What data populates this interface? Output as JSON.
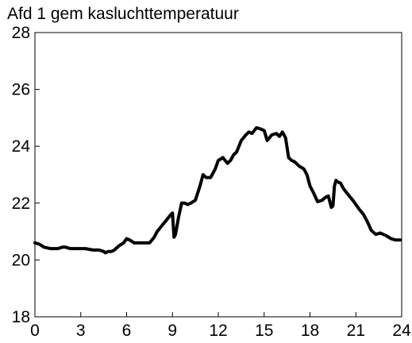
{
  "chart_data": {
    "type": "line",
    "title": "Afd 1 gem kasluchttemperatuur",
    "xlabel": "",
    "ylabel": "",
    "xlim": [
      0,
      24
    ],
    "ylim": [
      18,
      28
    ],
    "x_ticks": [
      "0",
      "3",
      "6",
      "9",
      "12",
      "15",
      "18",
      "21",
      "24"
    ],
    "y_ticks": [
      "18",
      "20",
      "22",
      "24",
      "26",
      "28"
    ],
    "grid": false,
    "legend": "none",
    "line_color": "#000000",
    "series": [
      {
        "x": [
          0,
          0.3,
          0.6,
          1.0,
          1.5,
          1.8,
          2.0,
          2.3,
          2.8,
          3.3,
          3.8,
          4.2,
          4.5,
          4.6,
          4.8,
          5.0,
          5.2,
          5.5,
          5.8,
          6.0,
          6.2,
          6.5,
          7.0,
          7.5,
          7.8,
          8.0,
          8.3,
          8.6,
          8.9,
          9.0,
          9.1,
          9.2,
          9.4,
          9.6,
          9.8,
          10.0,
          10.2,
          10.5,
          10.8,
          11.0,
          11.2,
          11.5,
          11.8,
          12.0,
          12.3,
          12.6,
          12.8,
          13.0,
          13.2,
          13.5,
          13.8,
          14.0,
          14.2,
          14.5,
          14.8,
          15.0,
          15.2,
          15.5,
          15.8,
          16.0,
          16.2,
          16.4,
          16.6,
          16.8,
          17.0,
          17.3,
          17.6,
          17.8,
          18.0,
          18.2,
          18.5,
          18.8,
          19.0,
          19.2,
          19.4,
          19.5,
          19.6,
          19.7,
          19.8,
          20.0,
          20.2,
          20.5,
          20.8,
          21.0,
          21.2,
          21.5,
          21.8,
          22.0,
          22.3,
          22.6,
          23.0,
          23.3,
          23.6,
          23.9
        ],
        "y": [
          20.6,
          20.55,
          20.45,
          20.4,
          20.4,
          20.45,
          20.45,
          20.4,
          20.4,
          20.4,
          20.35,
          20.35,
          20.3,
          20.25,
          20.3,
          20.3,
          20.35,
          20.5,
          20.6,
          20.75,
          20.7,
          20.6,
          20.6,
          20.6,
          20.8,
          21.0,
          21.2,
          21.4,
          21.6,
          21.65,
          20.8,
          20.9,
          21.5,
          22.0,
          22.0,
          21.95,
          22.0,
          22.1,
          22.6,
          23.0,
          22.9,
          22.9,
          23.2,
          23.5,
          23.6,
          23.4,
          23.5,
          23.7,
          23.8,
          24.2,
          24.4,
          24.5,
          24.45,
          24.65,
          24.6,
          24.55,
          24.2,
          24.4,
          24.45,
          24.35,
          24.5,
          24.3,
          23.6,
          23.5,
          23.45,
          23.3,
          23.2,
          23.0,
          22.6,
          22.4,
          22.05,
          22.1,
          22.2,
          22.25,
          21.85,
          21.9,
          22.6,
          22.8,
          22.75,
          22.7,
          22.5,
          22.3,
          22.1,
          21.95,
          21.8,
          21.6,
          21.3,
          21.05,
          20.9,
          20.95,
          20.85,
          20.75,
          20.7,
          20.7
        ]
      }
    ]
  }
}
